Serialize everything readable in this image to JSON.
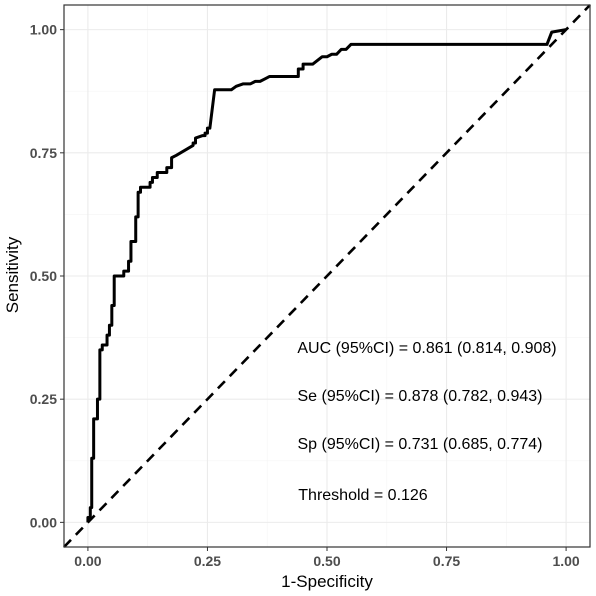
{
  "chart_data": {
    "type": "line",
    "xlabel": "1-Specificity",
    "ylabel": "Sensitivity",
    "xlim": [
      -0.05,
      1.05
    ],
    "ylim": [
      -0.05,
      1.05
    ],
    "x_ticks": [
      "0.00",
      "0.25",
      "0.50",
      "0.75",
      "1.00"
    ],
    "y_ticks": [
      "0.00",
      "0.25",
      "0.50",
      "0.75",
      "1.00"
    ],
    "x_tick_values": [
      0,
      0.25,
      0.5,
      0.75,
      1
    ],
    "y_tick_values": [
      0,
      0.25,
      0.5,
      0.75,
      1
    ],
    "grid": true,
    "reference_line": {
      "style": "dashed",
      "x": [
        -0.05,
        1.05
      ],
      "y": [
        -0.05,
        1.05
      ]
    },
    "series": [
      {
        "x": [
          0,
          0,
          0.005,
          0.005,
          0.008,
          0.008,
          0.012,
          0.012,
          0.02,
          0.02,
          0.025,
          0.025,
          0.03,
          0.03,
          0.04,
          0.04,
          0.045,
          0.045,
          0.05,
          0.05,
          0.055,
          0.055,
          0.075,
          0.075,
          0.085,
          0.085,
          0.09,
          0.09,
          0.1,
          0.1,
          0.105,
          0.105,
          0.11,
          0.11,
          0.13,
          0.13,
          0.135,
          0.135,
          0.145,
          0.145,
          0.155,
          0.155,
          0.165,
          0.165,
          0.175,
          0.175,
          0.185,
          0.22,
          0.22,
          0.225,
          0.225,
          0.24,
          0.245,
          0.245,
          0.25,
          0.25,
          0.255,
          0.265,
          0.265,
          0.3,
          0.31,
          0.325,
          0.34,
          0.35,
          0.36,
          0.37,
          0.38,
          0.44,
          0.44,
          0.45,
          0.45,
          0.47,
          0.49,
          0.5,
          0.51,
          0.52,
          0.53,
          0.54,
          0.55,
          0.92,
          0.96,
          0.97,
          1
        ],
        "y": [
          0,
          0.01,
          0.01,
          0.03,
          0.03,
          0.13,
          0.13,
          0.21,
          0.21,
          0.25,
          0.25,
          0.35,
          0.35,
          0.36,
          0.36,
          0.38,
          0.38,
          0.4,
          0.4,
          0.44,
          0.44,
          0.5,
          0.5,
          0.51,
          0.51,
          0.53,
          0.53,
          0.57,
          0.57,
          0.62,
          0.62,
          0.67,
          0.67,
          0.68,
          0.68,
          0.69,
          0.69,
          0.7,
          0.7,
          0.71,
          0.71,
          0.71,
          0.71,
          0.72,
          0.72,
          0.74,
          0.745,
          0.765,
          0.77,
          0.77,
          0.78,
          0.785,
          0.785,
          0.79,
          0.79,
          0.8,
          0.8,
          0.878,
          0.878,
          0.878,
          0.885,
          0.89,
          0.89,
          0.895,
          0.895,
          0.9,
          0.905,
          0.905,
          0.92,
          0.92,
          0.93,
          0.93,
          0.945,
          0.945,
          0.95,
          0.95,
          0.96,
          0.96,
          0.97,
          0.97,
          0.97,
          0.995,
          1
        ]
      }
    ],
    "annotations": [
      "AUC (95%CI) = 0.861 (0.814, 0.908)",
      "Se (95%CI) = 0.878 (0.782, 0.943)",
      "Sp (95%CI) = 0.731 (0.685, 0.774)",
      "Threshold = 0.126"
    ]
  }
}
